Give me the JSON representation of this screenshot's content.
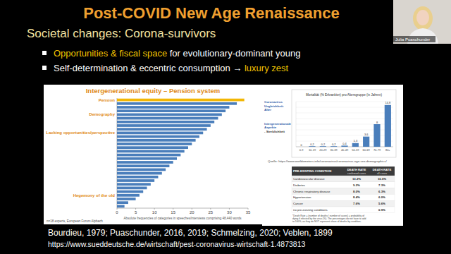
{
  "header": {
    "title": "Post-COVID New Age Renaissance",
    "subtitle": "Societal changes:  Corona-survivors"
  },
  "bullets": [
    {
      "parts": [
        {
          "text": "Opportunities & fiscal space",
          "accent": true
        },
        {
          "text": " for evolutionary-dominant young",
          "accent": false
        }
      ]
    },
    {
      "parts": [
        {
          "text": "Self-determination & eccentric consumption → ",
          "accent": false
        },
        {
          "text": "luxury zest",
          "accent": true
        }
      ]
    }
  ],
  "webcam": {
    "name": "Julia Puaschunder"
  },
  "side_notes": [
    {
      "lines": [
        "Coronavirus",
        "Ungleichheit:",
        "Alter"
      ]
    },
    {
      "lines": [
        "Intergenerationale",
        "Aspekte",
        "- Sterblichkeit"
      ]
    }
  ],
  "source": "Quelle: https://www.worldometers.info/coronavirus/coronavirus-age-sex-demographics/",
  "table": {
    "header": [
      {
        "title": "PRE-EXISTING CONDITION"
      },
      {
        "title": "DEATH RATE",
        "sub": "confirmed cases"
      },
      {
        "title": "DEATH RATE",
        "sub": "all cases"
      }
    ],
    "rows": [
      [
        "Cardiovascular disease",
        "13.2%",
        "10.5%"
      ],
      [
        "Diabetes",
        "9.2%",
        "7.3%"
      ],
      [
        "Chronic respiratory disease",
        "8.0%",
        "6.3%"
      ],
      [
        "Hypertension",
        "8.4%",
        "6.0%"
      ],
      [
        "Cancer",
        "7.6%",
        "5.6%"
      ],
      [
        "no pre-existing conditions",
        null,
        "0.9%"
      ]
    ],
    "footnote": [
      "*Death Rate = (number of deaths / number of cases) = probability of",
      "dying if infected by the virus (%). The percentages do not have to add",
      "to 100%, as they do NOT represent share of deaths by condition."
    ]
  },
  "references": [
    "Bourdieu, 1979; Puaschunder, 2016, 2019; Schmelzing, 2020; Veblen, 1899",
    "https://www.sueddeutsche.de/wirtschaft/pest-coronavirus-wirtschaft-1.4873813"
  ],
  "chart_data": [
    {
      "type": "bar",
      "orientation": "horizontal",
      "title": "Intergenerational equity – Pension system",
      "categories": [
        "Pension",
        null,
        null,
        null,
        "Demography",
        null,
        null,
        null,
        null,
        "Lacking opportunities/perspective",
        null,
        null,
        null,
        null,
        null,
        null,
        null,
        null,
        null,
        null,
        null,
        null,
        null,
        null,
        null,
        null,
        "Hegemony of the old",
        null,
        null,
        null
      ],
      "values": [
        34,
        32,
        30,
        29,
        28,
        27,
        26,
        25,
        24,
        23,
        22,
        21,
        20,
        19,
        18,
        17,
        16,
        15,
        14,
        13,
        12,
        11,
        10,
        9,
        8,
        7,
        6,
        5,
        3,
        2
      ],
      "colors": [
        "#f2b705",
        "#4a7ebb",
        "#4a7ebb",
        "#4a7ebb",
        "#4a7ebb",
        "#4a7ebb",
        "#4a7ebb",
        "#4a7ebb",
        "#4a7ebb",
        "#4a7ebb",
        "#4a7ebb",
        "#4a7ebb",
        "#4a7ebb",
        "#4a7ebb",
        "#4a7ebb",
        "#4a7ebb",
        "#4a7ebb",
        "#4a7ebb",
        "#4a7ebb",
        "#4a7ebb",
        "#4a7ebb",
        "#4a7ebb",
        "#4a7ebb",
        "#4a7ebb",
        "#4a7ebb",
        "#4a7ebb",
        "#4a7ebb",
        "#4a7ebb",
        "#4a7ebb",
        "#4a7ebb"
      ],
      "xlim": [
        0,
        35
      ],
      "xticks": [
        0,
        5,
        10,
        15,
        20,
        25,
        30,
        35
      ],
      "xlabel": "Absolute frequencies of categories in speeches/interviews comprising 48,440 words",
      "annotations": [
        "n=18 experts, European Forum Alpbach"
      ]
    },
    {
      "type": "bar",
      "title": "Mortalität (% Erkrankter) pro Altersgruppe (in Jahren)",
      "categories": [
        "0-9",
        "10-19",
        "20-29",
        "30-39",
        "40-49",
        "50-59",
        "60-69",
        "70-79",
        "80+"
      ],
      "values": [
        0,
        0.2,
        0.2,
        0.2,
        0.4,
        1.3,
        3.6,
        8.0,
        14.8
      ],
      "value_labels": [
        "0",
        "0,2",
        "0,2",
        "0,2",
        "0,4",
        "1,3",
        "3,6",
        "8",
        "14,8"
      ],
      "color": "#4a7ebb",
      "ylim": [
        0,
        16
      ],
      "yticks": [
        0,
        2,
        4,
        6,
        8,
        10,
        12,
        14,
        16
      ],
      "grid": true,
      "data_labels": true,
      "tick_labels": "x"
    }
  ]
}
